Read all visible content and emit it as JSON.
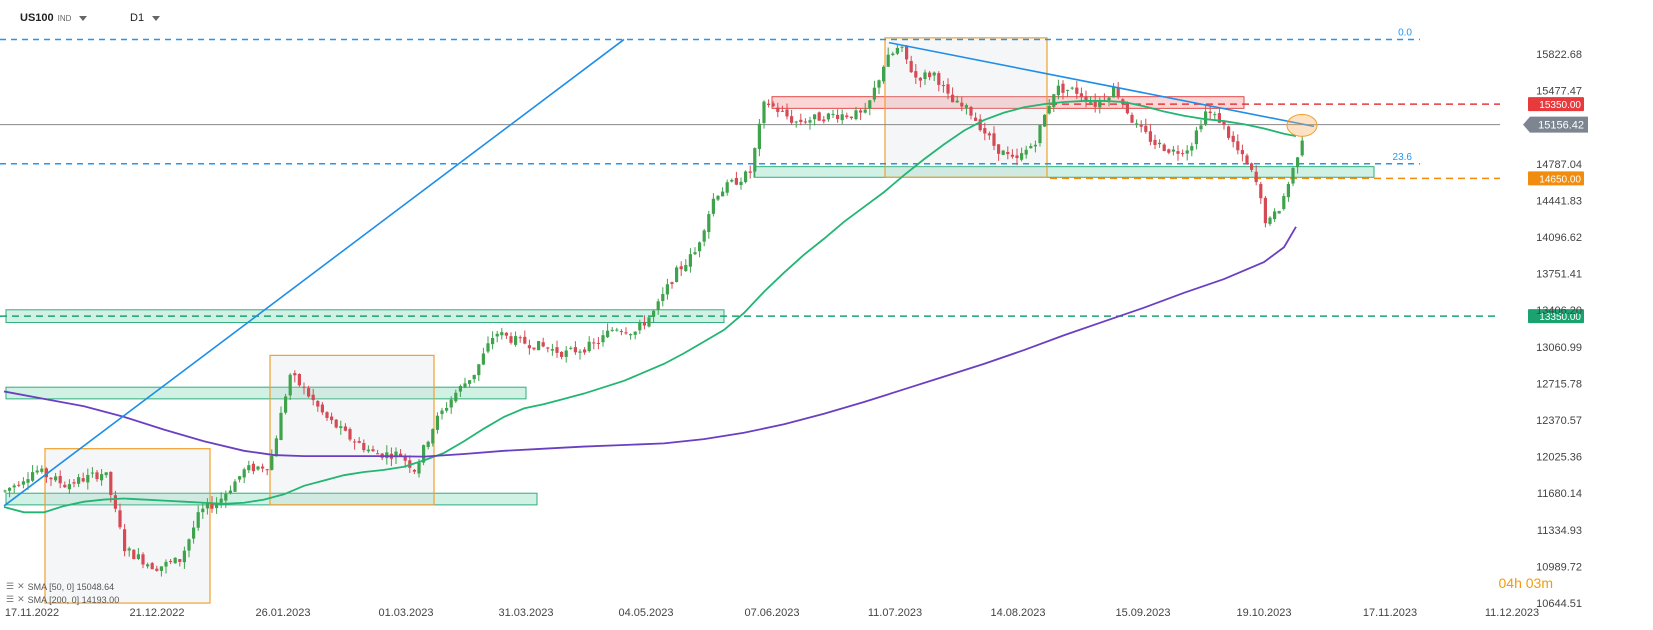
{
  "header": {
    "symbol": "US100",
    "symbol_sub": "IND",
    "timeframe": "D1"
  },
  "timer": "04h 03m",
  "indicators": [
    {
      "label": "SMA [50, 0] 15048.64",
      "color": "#22b573"
    },
    {
      "label": "SMA [200, 0] 14193.00",
      "color": "#6a3fc2"
    }
  ],
  "chart_data": {
    "type": "candlestick",
    "x_tick_labels": [
      "17.11.2022",
      "21.12.2022",
      "26.01.2023",
      "01.03.2023",
      "31.03.2023",
      "04.05.2023",
      "07.06.2023",
      "11.07.2023",
      "14.08.2023",
      "15.09.2023",
      "19.10.2023",
      "17.11.2023",
      "11.12.2023"
    ],
    "y_tick_labels": [
      "15822.68",
      "15477.47",
      "14787.04",
      "14441.83",
      "14096.62",
      "13751.41",
      "13406.20",
      "13060.99",
      "12715.78",
      "12370.57",
      "12025.36",
      "11680.14",
      "11334.93",
      "10989.72",
      "10644.51"
    ],
    "ylim": [
      10644.51,
      15990
    ],
    "current_price": "15156.42",
    "levels": [
      {
        "value": 15350.0,
        "label": "15350.00",
        "color": "#e8393c",
        "style": "dashed"
      },
      {
        "value": 14650.0,
        "label": "14650.00",
        "color": "#f28c0e",
        "style": "dashed"
      },
      {
        "value": 13350.0,
        "label": "13350.00",
        "color": "#1aa370",
        "style": "dashed"
      }
    ],
    "fib_levels": [
      {
        "label": "0.0",
        "value": 15960
      },
      {
        "label": "23.6",
        "value": 14787
      }
    ],
    "series": [
      {
        "name": "SMA [50, 0]",
        "color": "#22b573",
        "points": [
          [
            0,
            11550
          ],
          [
            20,
            11500
          ],
          [
            40,
            11500
          ],
          [
            60,
            11560
          ],
          [
            80,
            11600
          ],
          [
            100,
            11620
          ],
          [
            120,
            11630
          ],
          [
            140,
            11620
          ],
          [
            160,
            11610
          ],
          [
            180,
            11600
          ],
          [
            200,
            11590
          ],
          [
            220,
            11580
          ],
          [
            240,
            11590
          ],
          [
            260,
            11620
          ],
          [
            280,
            11670
          ],
          [
            300,
            11750
          ],
          [
            320,
            11800
          ],
          [
            340,
            11850
          ],
          [
            360,
            11880
          ],
          [
            380,
            11900
          ],
          [
            400,
            11930
          ],
          [
            420,
            11990
          ],
          [
            440,
            12060
          ],
          [
            460,
            12170
          ],
          [
            480,
            12290
          ],
          [
            500,
            12400
          ],
          [
            520,
            12480
          ],
          [
            540,
            12520
          ],
          [
            560,
            12570
          ],
          [
            580,
            12620
          ],
          [
            600,
            12680
          ],
          [
            620,
            12740
          ],
          [
            640,
            12820
          ],
          [
            660,
            12900
          ],
          [
            680,
            13000
          ],
          [
            700,
            13110
          ],
          [
            720,
            13220
          ],
          [
            740,
            13380
          ],
          [
            760,
            13580
          ],
          [
            780,
            13760
          ],
          [
            800,
            13930
          ],
          [
            820,
            14080
          ],
          [
            840,
            14240
          ],
          [
            860,
            14380
          ],
          [
            880,
            14520
          ],
          [
            900,
            14680
          ],
          [
            920,
            14830
          ],
          [
            940,
            14970
          ],
          [
            960,
            15100
          ],
          [
            980,
            15200
          ],
          [
            1000,
            15270
          ],
          [
            1020,
            15320
          ],
          [
            1040,
            15350
          ],
          [
            1060,
            15370
          ],
          [
            1080,
            15380
          ],
          [
            1100,
            15380
          ],
          [
            1120,
            15370
          ],
          [
            1140,
            15330
          ],
          [
            1160,
            15280
          ],
          [
            1180,
            15240
          ],
          [
            1200,
            15210
          ],
          [
            1220,
            15190
          ],
          [
            1240,
            15160
          ],
          [
            1260,
            15120
          ],
          [
            1280,
            15070
          ],
          [
            1292,
            15048
          ]
        ]
      },
      {
        "name": "SMA [200, 0]",
        "color": "#6a3fc2",
        "points": [
          [
            0,
            12640
          ],
          [
            40,
            12570
          ],
          [
            80,
            12500
          ],
          [
            120,
            12400
          ],
          [
            160,
            12280
          ],
          [
            200,
            12170
          ],
          [
            240,
            12080
          ],
          [
            270,
            12040
          ],
          [
            300,
            12030
          ],
          [
            340,
            12030
          ],
          [
            380,
            12030
          ],
          [
            420,
            12025
          ],
          [
            460,
            12050
          ],
          [
            500,
            12080
          ],
          [
            540,
            12100
          ],
          [
            580,
            12120
          ],
          [
            620,
            12135
          ],
          [
            660,
            12150
          ],
          [
            700,
            12190
          ],
          [
            740,
            12250
          ],
          [
            780,
            12330
          ],
          [
            820,
            12430
          ],
          [
            860,
            12540
          ],
          [
            900,
            12660
          ],
          [
            940,
            12780
          ],
          [
            980,
            12900
          ],
          [
            1020,
            13030
          ],
          [
            1060,
            13170
          ],
          [
            1100,
            13300
          ],
          [
            1140,
            13430
          ],
          [
            1180,
            13570
          ],
          [
            1220,
            13700
          ],
          [
            1260,
            13860
          ],
          [
            1280,
            14000
          ],
          [
            1292,
            14193
          ]
        ]
      }
    ],
    "candles_note": "daily OHLC, generated procedurally from the visible path",
    "candle_path": [
      [
        0,
        11700
      ],
      [
        30,
        11900
      ],
      [
        60,
        11760
      ],
      [
        100,
        11880
      ],
      [
        120,
        11150
      ],
      [
        150,
        10980
      ],
      [
        175,
        11050
      ],
      [
        195,
        11500
      ],
      [
        215,
        11620
      ],
      [
        240,
        11900
      ],
      [
        265,
        11950
      ],
      [
        285,
        12800
      ],
      [
        300,
        12650
      ],
      [
        320,
        12400
      ],
      [
        345,
        12200
      ],
      [
        370,
        12050
      ],
      [
        395,
        12050
      ],
      [
        410,
        11900
      ],
      [
        430,
        12350
      ],
      [
        450,
        12620
      ],
      [
        470,
        12820
      ],
      [
        490,
        13200
      ],
      [
        510,
        13120
      ],
      [
        530,
        13080
      ],
      [
        560,
        13000
      ],
      [
        590,
        13080
      ],
      [
        610,
        13250
      ],
      [
        630,
        13200
      ],
      [
        650,
        13400
      ],
      [
        670,
        13750
      ],
      [
        690,
        13950
      ],
      [
        710,
        14500
      ],
      [
        730,
        14620
      ],
      [
        745,
        14700
      ],
      [
        760,
        15380
      ],
      [
        790,
        15180
      ],
      [
        830,
        15250
      ],
      [
        860,
        15250
      ],
      [
        880,
        15750
      ],
      [
        895,
        15890
      ],
      [
        910,
        15600
      ],
      [
        930,
        15640
      ],
      [
        945,
        15380
      ],
      [
        965,
        15280
      ],
      [
        990,
        14950
      ],
      [
        1010,
        14800
      ],
      [
        1030,
        15000
      ],
      [
        1050,
        15500
      ],
      [
        1070,
        15480
      ],
      [
        1090,
        15350
      ],
      [
        1110,
        15500
      ],
      [
        1130,
        15150
      ],
      [
        1150,
        14980
      ],
      [
        1170,
        14900
      ],
      [
        1185,
        14950
      ],
      [
        1200,
        15280
      ],
      [
        1215,
        15200
      ],
      [
        1230,
        14950
      ],
      [
        1250,
        14650
      ],
      [
        1262,
        14200
      ],
      [
        1275,
        14380
      ],
      [
        1287,
        14700
      ],
      [
        1300,
        15130
      ]
    ],
    "zones": [
      {
        "y1": 13410,
        "y2": 13290,
        "x1": 2,
        "x2": 720,
        "fill": "rgba(76,201,153,0.25)",
        "stroke": "#2fae7d"
      },
      {
        "y1": 12680,
        "y2": 12570,
        "x1": 2,
        "x2": 522,
        "fill": "rgba(76,201,153,0.25)",
        "stroke": "#2fae7d"
      },
      {
        "y1": 11680,
        "y2": 11570,
        "x1": 2,
        "x2": 533,
        "fill": "rgba(76,201,153,0.25)",
        "stroke": "#2fae7d"
      },
      {
        "y1": 14760,
        "y2": 14660,
        "x1": 750,
        "x2": 1370,
        "fill": "rgba(76,201,153,0.25)",
        "stroke": "#2fae7d"
      },
      {
        "y1": 15420,
        "y2": 15310,
        "x1": 768,
        "x2": 1240,
        "fill": "rgba(240,90,90,0.25)",
        "stroke": "#e04a4a"
      }
    ],
    "boxes": [
      {
        "x1": 41,
        "x2": 206,
        "y1": 12100,
        "y2": 10644
      },
      {
        "x1": 266,
        "x2": 430,
        "y1": 12980,
        "y2": 11570
      },
      {
        "x1": 881,
        "x2": 1043,
        "y1": 15975,
        "y2": 14660
      }
    ],
    "trendlines": [
      {
        "x1": 0,
        "y1": 11560,
        "x2": 620,
        "y2": 15960,
        "color": "#1e8ee8"
      },
      {
        "x1": 885,
        "y1": 15930,
        "x2": 1310,
        "y2": 15140,
        "color": "#1e8ee8"
      }
    ],
    "grid": false,
    "price_axis": "right"
  }
}
